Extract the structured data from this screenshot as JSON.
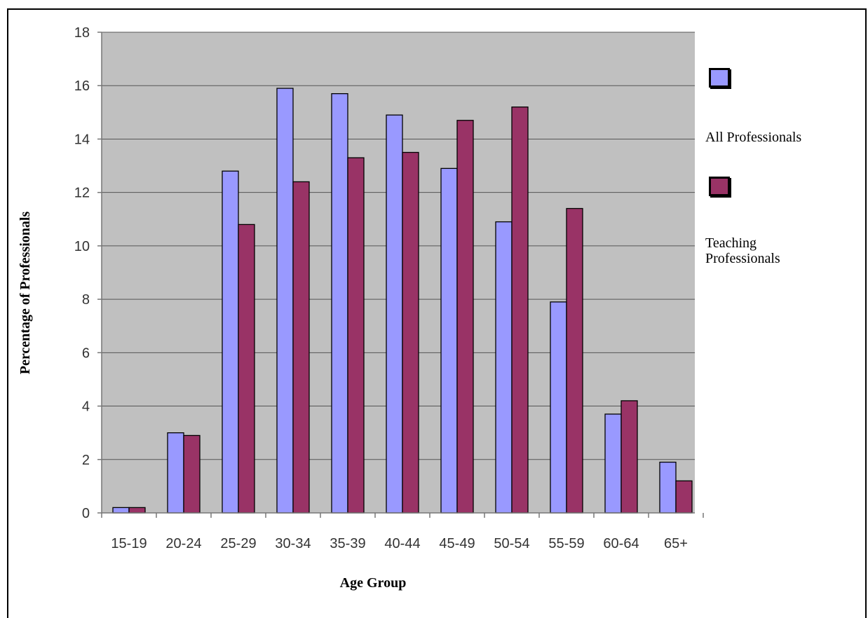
{
  "chart_data": {
    "type": "bar",
    "title": "",
    "xlabel": "Age Group",
    "ylabel": "Percentage of Professionals",
    "ylim": [
      0,
      18
    ],
    "yticks": [
      0,
      2,
      4,
      6,
      8,
      10,
      12,
      14,
      16,
      18
    ],
    "grid": true,
    "legend_position": "right",
    "categories": [
      "15-19",
      "20-24",
      "25-29",
      "30-34",
      "35-39",
      "40-44",
      "45-49",
      "50-54",
      "55-59",
      "60-64",
      "65+"
    ],
    "series": [
      {
        "name": "All Professionals",
        "color": "#9999ff",
        "values": [
          0.2,
          3.0,
          12.8,
          15.9,
          15.7,
          14.9,
          12.9,
          10.9,
          7.9,
          3.7,
          1.9
        ]
      },
      {
        "name": "Teaching Professionals",
        "color": "#993366",
        "values": [
          0.2,
          2.9,
          10.8,
          12.4,
          13.3,
          13.5,
          14.7,
          15.2,
          11.4,
          4.2,
          1.2
        ]
      }
    ],
    "plot_background": "#c0c0c0"
  }
}
